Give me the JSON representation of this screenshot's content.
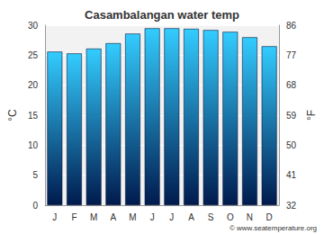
{
  "chart_data": {
    "type": "bar",
    "title": "Casambalangan water temp",
    "categories": [
      "J",
      "F",
      "M",
      "A",
      "M",
      "J",
      "J",
      "A",
      "S",
      "O",
      "N",
      "D"
    ],
    "values": [
      25.6,
      25.3,
      26.1,
      27.0,
      28.6,
      29.5,
      29.5,
      29.4,
      29.2,
      28.9,
      28.0,
      26.5
    ],
    "color": "#33ccff",
    "ylabel": "°C",
    "y2label": "°F",
    "ylim": [
      0,
      30
    ],
    "yticks": [
      0,
      5,
      10,
      15,
      20,
      25,
      30
    ],
    "y2lim": [
      32,
      86
    ],
    "y2ticks": [
      32,
      41,
      50,
      59,
      68,
      77,
      86
    ],
    "grid": true,
    "annotation": "© www.seatemperature.org"
  }
}
